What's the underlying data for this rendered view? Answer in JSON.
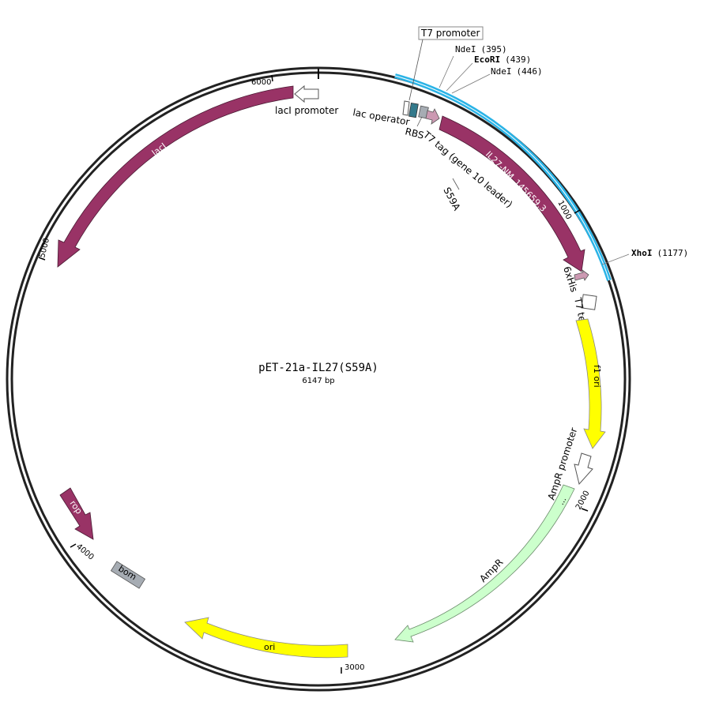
{
  "plasmid": {
    "name": "pET-21a-IL27(S59A)",
    "length_label": "6147 bp",
    "length": 6147
  },
  "colors": {
    "backbone": "#222222",
    "cloned_insert": "#2ab3e6",
    "cds": "#993366",
    "origin": "#ffff00",
    "ampr": "#ccffcc",
    "misc_feature": "#a6acb3",
    "promoter": "#ffffff",
    "rbs": "#ffffff",
    "operator": "#ffffff",
    "tag": "#cc99b2",
    "teal": "#347a8c"
  },
  "ticks": [
    "1000",
    "2000",
    "3000",
    "4000",
    "5000",
    "6000"
  ],
  "restriction_sites": [
    {
      "name": "NdeI",
      "pos": "(395)",
      "bold": false
    },
    {
      "name": "EcoRI",
      "pos": "(439)",
      "bold": true
    },
    {
      "name": "NdeI",
      "pos": "(446)",
      "bold": false
    },
    {
      "name": "XhoI",
      "pos": "(1177)",
      "bold": true
    }
  ],
  "features": {
    "t7_promoter": "T7 promoter",
    "lac_operator": "lac operator",
    "rbs": "RBS",
    "t7_tag": "T7 tag (gene 10 leader)",
    "insert": "IL27-NM_145659.3",
    "mutation": "S59A",
    "his_tag": "6xHis",
    "t7_terminator": "T7 terminator",
    "f1_ori": "f1 ori",
    "ampr_promoter": "AmpR promoter",
    "ampr": "AmpR",
    "ori": "ori",
    "bom": "bom",
    "rop": "rop",
    "laci": "lacI",
    "laci_promoter": "lacI promoter"
  }
}
